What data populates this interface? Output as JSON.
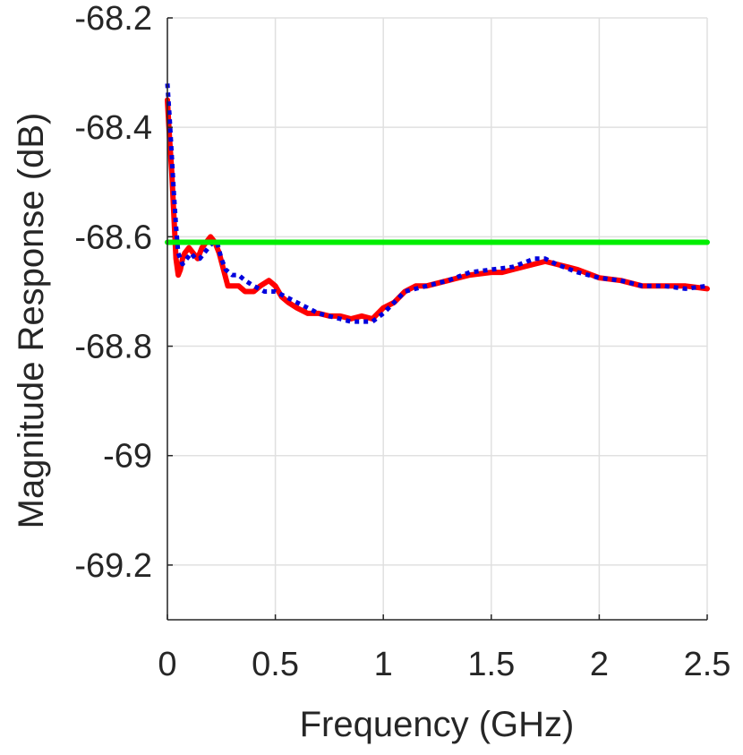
{
  "chart_data": {
    "type": "line",
    "title": "",
    "xlabel": "Frequency (GHz)",
    "ylabel": "Magnitude Response (dB)",
    "xlim": [
      0,
      2.5
    ],
    "ylim": [
      -69.3,
      -68.2
    ],
    "xticks": [
      0,
      0.5,
      1,
      1.5,
      2,
      2.5
    ],
    "xtick_labels": [
      "0",
      "0.5",
      "1",
      "1.5",
      "2",
      "2.5"
    ],
    "yticks": [
      -68.2,
      -68.4,
      -68.6,
      -68.8,
      -69,
      -69.2
    ],
    "ytick_labels": [
      "-68.2",
      "-68.4",
      "-68.6",
      "-68.8",
      "-69",
      "-69.2"
    ],
    "grid": true,
    "legend": "none",
    "series": [
      {
        "color": "#ff0000",
        "style": "solid",
        "x": [
          0,
          0.01,
          0.02,
          0.03,
          0.04,
          0.05,
          0.06,
          0.07,
          0.08,
          0.1,
          0.12,
          0.14,
          0.16,
          0.18,
          0.2,
          0.22,
          0.24,
          0.26,
          0.28,
          0.3,
          0.33,
          0.36,
          0.4,
          0.43,
          0.47,
          0.5,
          0.53,
          0.56,
          0.6,
          0.65,
          0.7,
          0.75,
          0.8,
          0.85,
          0.9,
          0.95,
          1.0,
          1.05,
          1.1,
          1.15,
          1.2,
          1.3,
          1.4,
          1.5,
          1.55,
          1.6,
          1.7,
          1.75,
          1.8,
          1.9,
          2.0,
          2.1,
          2.2,
          2.3,
          2.4,
          2.5
        ],
        "y": [
          -68.35,
          -68.42,
          -68.48,
          -68.56,
          -68.64,
          -68.67,
          -68.66,
          -68.64,
          -68.63,
          -68.62,
          -68.63,
          -68.64,
          -68.62,
          -68.61,
          -68.6,
          -68.61,
          -68.63,
          -68.66,
          -68.69,
          -68.69,
          -68.69,
          -68.7,
          -68.7,
          -68.69,
          -68.68,
          -68.69,
          -68.71,
          -68.72,
          -68.73,
          -68.74,
          -68.74,
          -68.745,
          -68.745,
          -68.75,
          -68.745,
          -68.75,
          -68.73,
          -68.72,
          -68.7,
          -68.69,
          -68.69,
          -68.68,
          -68.67,
          -68.665,
          -68.665,
          -68.66,
          -68.65,
          -68.645,
          -68.65,
          -68.66,
          -68.675,
          -68.68,
          -68.69,
          -68.69,
          -68.69,
          -68.695
        ]
      },
      {
        "color": "#0000dd",
        "style": "dotted",
        "x": [
          0,
          0.01,
          0.02,
          0.03,
          0.04,
          0.05,
          0.07,
          0.09,
          0.11,
          0.13,
          0.15,
          0.17,
          0.19,
          0.21,
          0.23,
          0.25,
          0.27,
          0.3,
          0.33,
          0.36,
          0.4,
          0.45,
          0.5,
          0.55,
          0.6,
          0.65,
          0.7,
          0.75,
          0.8,
          0.85,
          0.9,
          0.95,
          1.0,
          1.05,
          1.1,
          1.2,
          1.3,
          1.4,
          1.5,
          1.6,
          1.7,
          1.75,
          1.8,
          1.9,
          2.0,
          2.1,
          2.2,
          2.3,
          2.4,
          2.5
        ],
        "y": [
          -68.32,
          -68.38,
          -68.45,
          -68.52,
          -68.58,
          -68.63,
          -68.65,
          -68.64,
          -68.63,
          -68.64,
          -68.64,
          -68.63,
          -68.62,
          -68.61,
          -68.61,
          -68.64,
          -68.66,
          -68.67,
          -68.67,
          -68.68,
          -68.69,
          -68.7,
          -68.7,
          -68.71,
          -68.72,
          -68.73,
          -68.74,
          -68.745,
          -68.75,
          -68.755,
          -68.755,
          -68.755,
          -68.74,
          -68.72,
          -68.7,
          -68.69,
          -68.68,
          -68.665,
          -68.66,
          -68.655,
          -68.64,
          -68.64,
          -68.65,
          -68.665,
          -68.675,
          -68.68,
          -68.69,
          -68.69,
          -68.695,
          -68.69
        ]
      },
      {
        "color": "#00ee00",
        "style": "solid",
        "x": [
          0,
          2.5
        ],
        "y": [
          -68.61,
          -68.61
        ]
      }
    ]
  }
}
